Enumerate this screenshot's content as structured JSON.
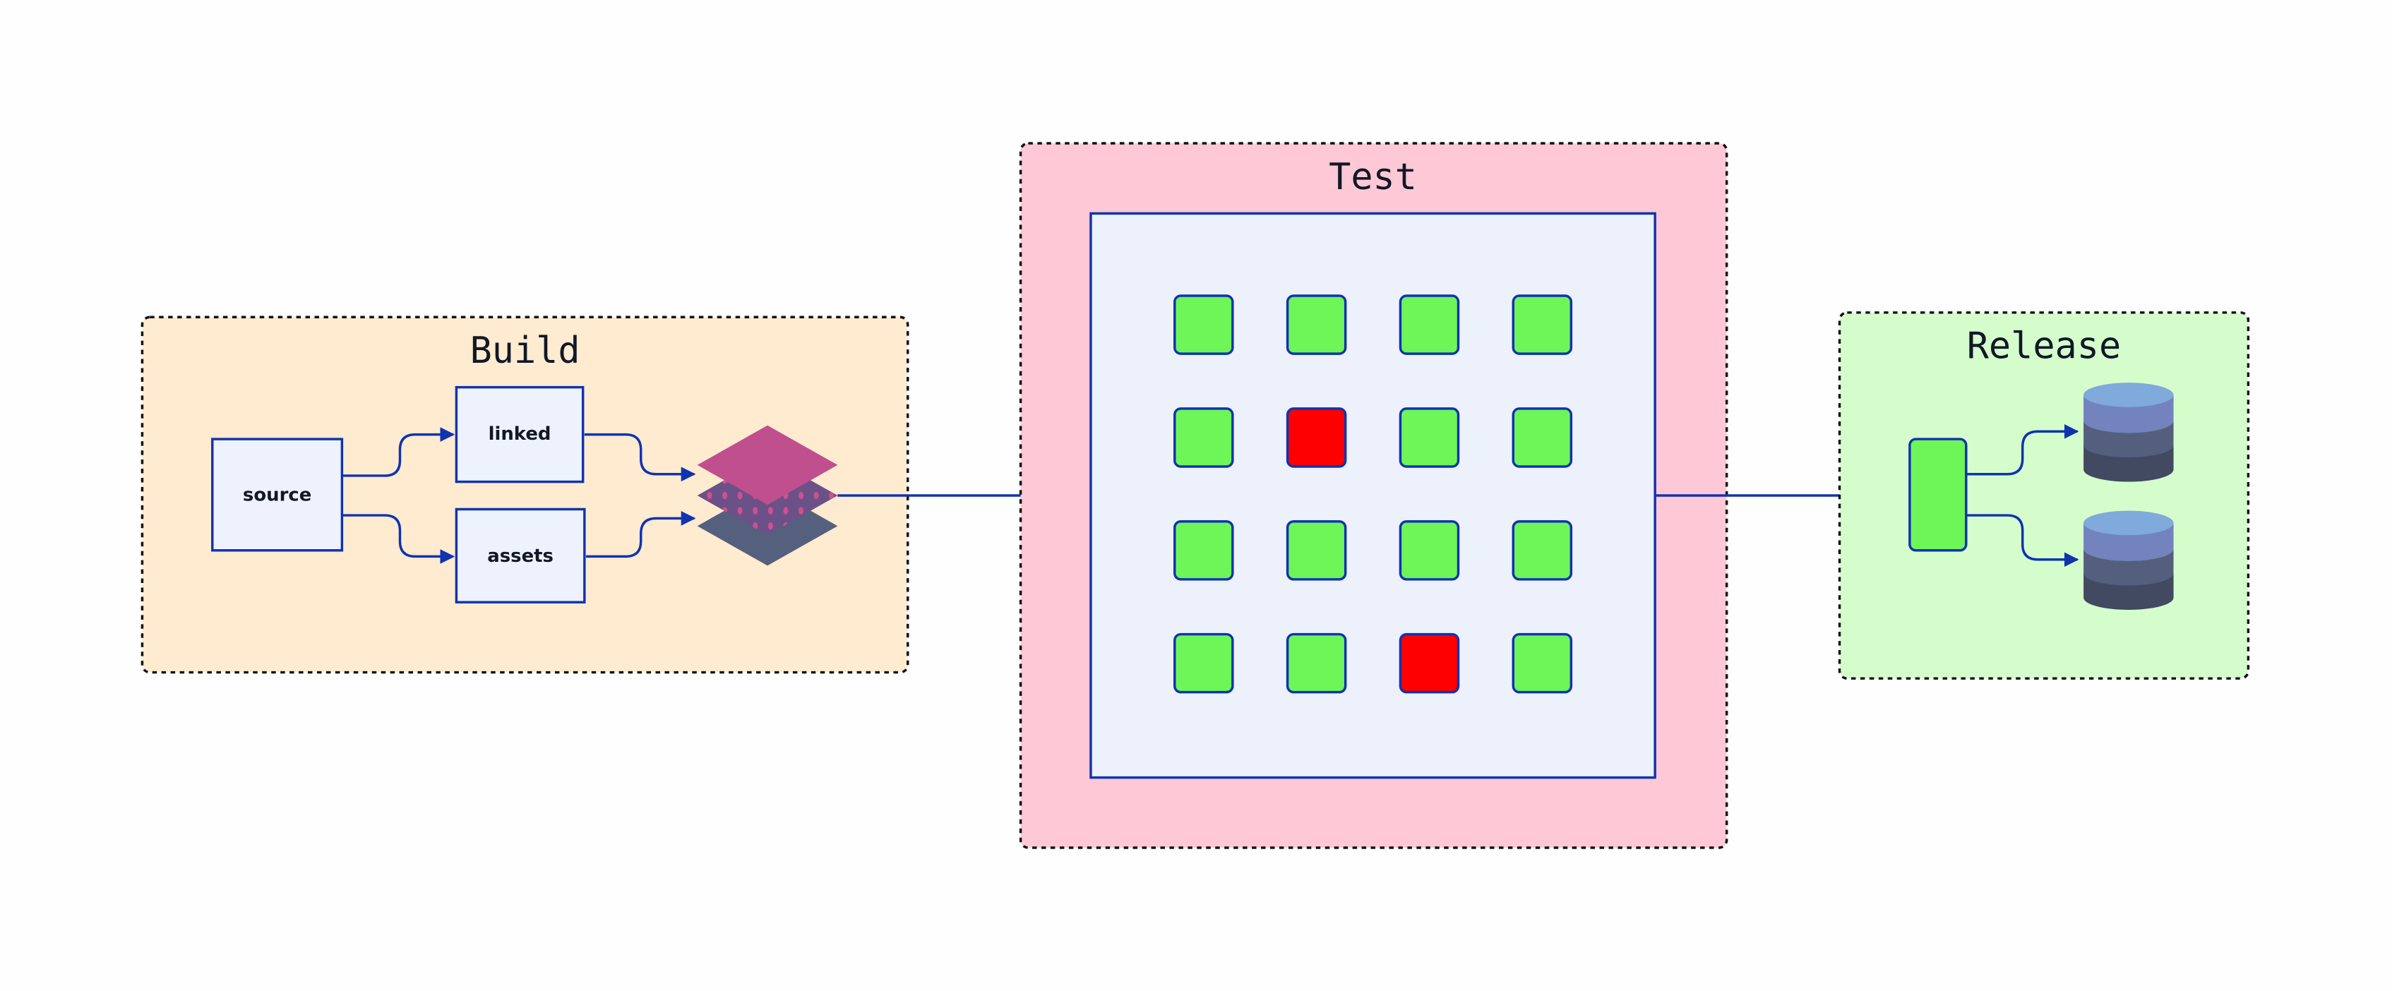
{
  "stages": {
    "build": {
      "title": "Build",
      "nodes": [
        "source",
        "linked",
        "assets"
      ]
    },
    "test": {
      "title": "Test",
      "results": [
        [
          "pass",
          "pass",
          "pass",
          "pass"
        ],
        [
          "pass",
          "fail",
          "pass",
          "pass"
        ],
        [
          "pass",
          "pass",
          "pass",
          "pass"
        ],
        [
          "pass",
          "pass",
          "fail",
          "pass"
        ]
      ]
    },
    "release": {
      "title": "Release"
    }
  },
  "icons": {
    "artifact": "layers-icon",
    "storage": "database-icon"
  },
  "colors": {
    "edge": "#1033b0",
    "pass": "#6ef558",
    "fail": "#ff0000",
    "build_bg": "#feebd0",
    "test_bg": "#ffc8d6",
    "release_bg": "#d5fdcc",
    "node_fill": "#eef2fc"
  }
}
